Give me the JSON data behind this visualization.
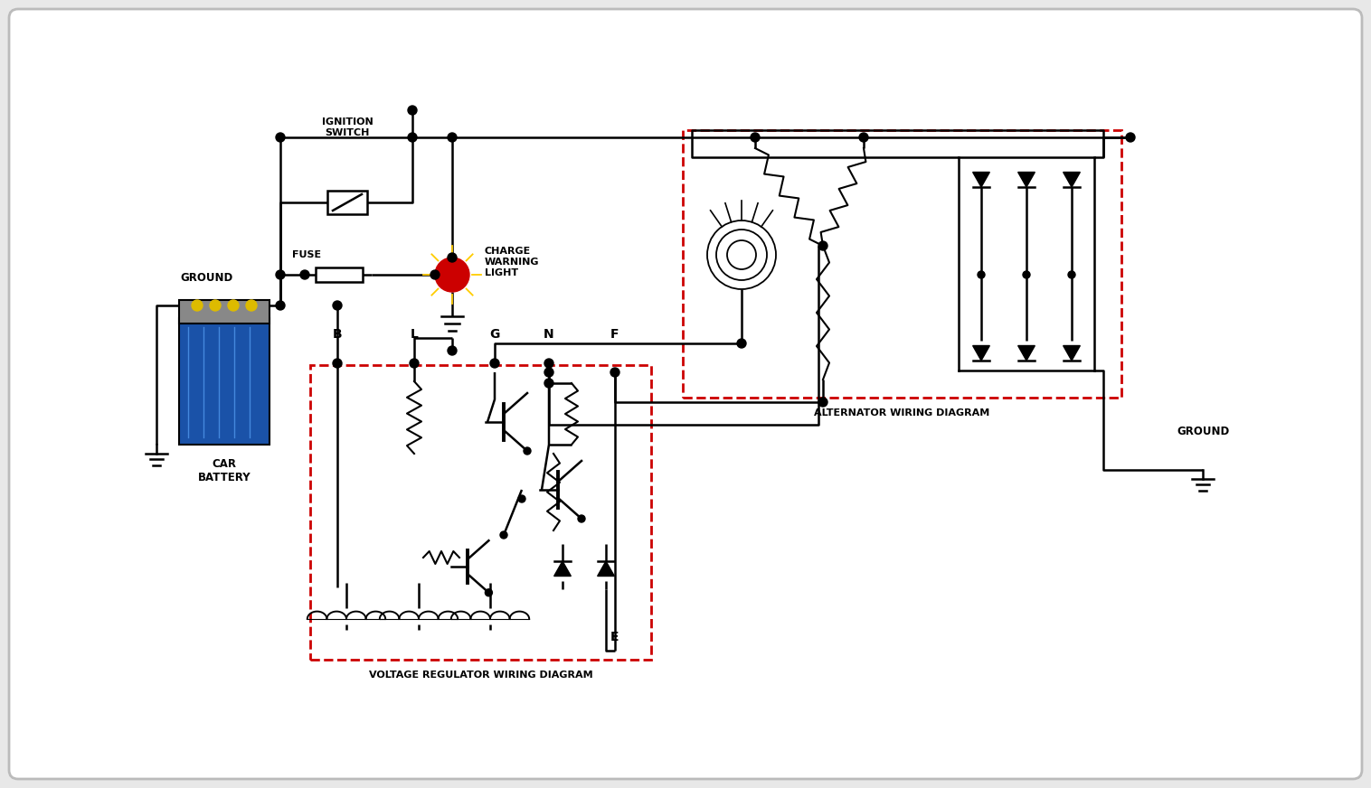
{
  "bg_outer": "#e8e8e8",
  "bg_inner": "#ffffff",
  "red_color": "#cc0000",
  "battery_blue": "#1a52a8",
  "battery_gray": "#888888",
  "terminal_gold": "#ddbb00",
  "bulb_red": "#cc0000",
  "lw": 1.8,
  "labels": {
    "ground_left": "GROUND",
    "ground_right": "GROUND",
    "car_battery": "CAR\nBATTERY",
    "ignition": "IGNITION\nSWITCH",
    "fuse": "FUSE",
    "charge": "CHARGE\nWARNING\nLIGHT",
    "B": "B",
    "L": "L",
    "G": "G",
    "N": "N",
    "F": "F",
    "E": "E",
    "vreg": "VOLTAGE REGULATOR WIRING DIAGRAM",
    "alt": "ALTERNATOR WIRING DIAGRAM"
  }
}
